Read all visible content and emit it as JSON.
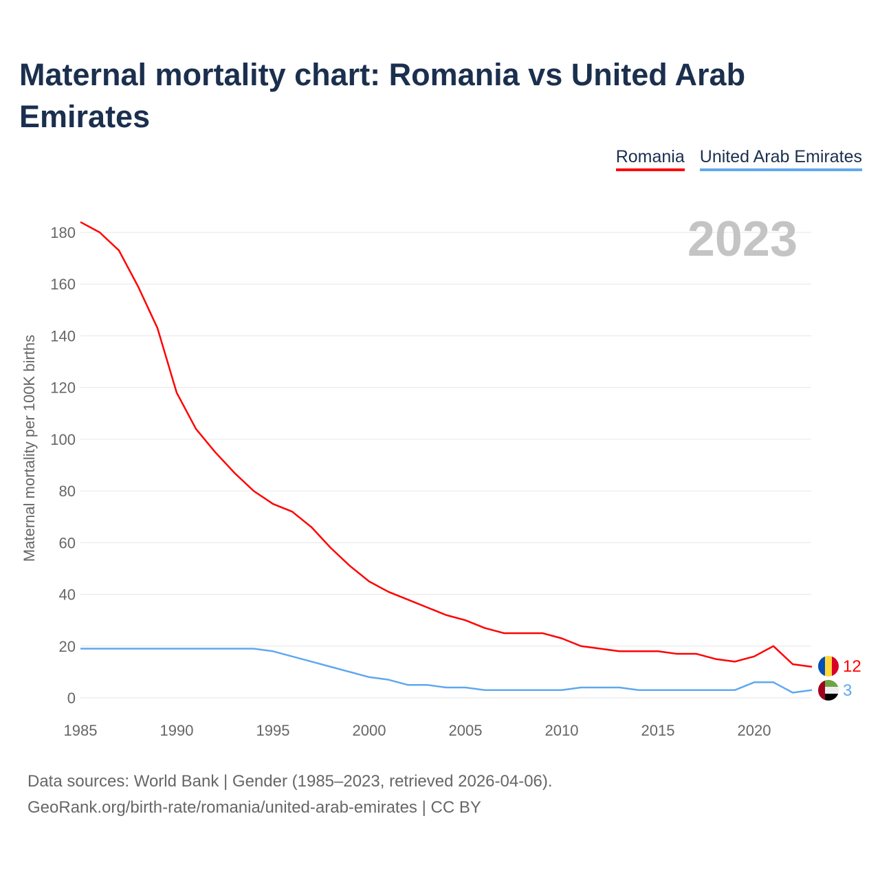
{
  "title": "Maternal mortality chart: Romania vs United Arab Emirates",
  "year_badge": "2023",
  "footer": {
    "line1": "Data sources: World Bank | Gender (1985–2023, retrieved 2026-04-06).",
    "line2": "GeoRank.org/birth-rate/romania/united-arab-emirates | CC BY"
  },
  "chart_data": {
    "type": "line",
    "title": "Maternal mortality chart: Romania vs United Arab Emirates",
    "xlabel": "",
    "ylabel": "Maternal mortality per 100K births",
    "xlim": [
      1985,
      2023
    ],
    "ylim": [
      0,
      185
    ],
    "x_ticks": [
      "1985",
      "1990",
      "1995",
      "2000",
      "2005",
      "2010",
      "2015",
      "2020"
    ],
    "y_ticks": [
      "0",
      "20",
      "40",
      "60",
      "80",
      "100",
      "120",
      "140",
      "160",
      "180"
    ],
    "grid": true,
    "legend_position": "top-right",
    "x": [
      1985,
      1986,
      1987,
      1988,
      1989,
      1990,
      1991,
      1992,
      1993,
      1994,
      1995,
      1996,
      1997,
      1998,
      1999,
      2000,
      2001,
      2002,
      2003,
      2004,
      2005,
      2006,
      2007,
      2008,
      2009,
      2010,
      2011,
      2012,
      2013,
      2014,
      2015,
      2016,
      2017,
      2018,
      2019,
      2020,
      2021,
      2022,
      2023
    ],
    "series": [
      {
        "name": "Romania",
        "color": "#ff0000",
        "end_label": "12",
        "values": [
          184,
          180,
          173,
          159,
          143,
          118,
          104,
          95,
          87,
          80,
          75,
          72,
          66,
          58,
          51,
          45,
          41,
          38,
          35,
          32,
          30,
          27,
          25,
          25,
          25,
          23,
          20,
          19,
          18,
          18,
          18,
          17,
          17,
          15,
          14,
          16,
          20,
          13,
          12
        ]
      },
      {
        "name": "United Arab Emirates",
        "color": "#5fa8ee",
        "end_label": "3",
        "values": [
          19,
          19,
          19,
          19,
          19,
          19,
          19,
          19,
          19,
          19,
          18,
          16,
          14,
          12,
          10,
          8,
          7,
          5,
          5,
          4,
          4,
          3,
          3,
          3,
          3,
          3,
          4,
          4,
          4,
          3,
          3,
          3,
          3,
          3,
          3,
          6,
          6,
          2,
          3
        ]
      }
    ]
  }
}
